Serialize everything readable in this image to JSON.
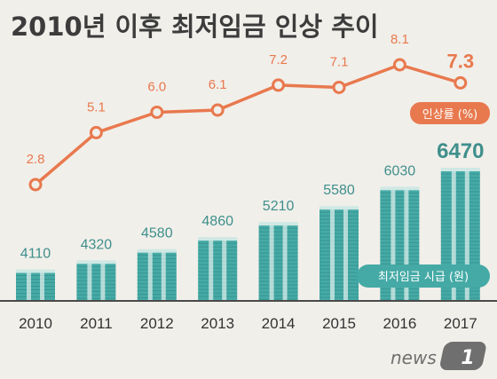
{
  "title": "2010년 이후 최저임금 인상 추이",
  "colors": {
    "background": "#f1efea",
    "line": "#e8794e",
    "bar": "#45aaa6",
    "bar_dark": "#2f8581",
    "bar_label": "#3f8f8c",
    "legend_rate_bg": "#e8794e",
    "legend_wage_bg": "#45aaa6"
  },
  "legend": {
    "rate": "인상률 (%)",
    "wage": "최저임금 시급 (원)"
  },
  "logo": {
    "text": "news",
    "badge": "1"
  },
  "chart_data": {
    "type": "bar+line",
    "categories": [
      "2010",
      "2011",
      "2012",
      "2013",
      "2014",
      "2015",
      "2016",
      "2017"
    ],
    "series": [
      {
        "name": "최저임금 시급 (원)",
        "type": "bar",
        "values": [
          4110,
          4320,
          4580,
          4860,
          5210,
          5580,
          6030,
          6470
        ]
      },
      {
        "name": "인상률 (%)",
        "type": "line",
        "values": [
          2.8,
          5.1,
          6.0,
          6.1,
          7.2,
          7.1,
          8.1,
          7.3
        ]
      }
    ],
    "display_labels": {
      "wage": [
        "4110",
        "4320",
        "4580",
        "4860",
        "5210",
        "5580",
        "6030",
        "6470"
      ],
      "rate": [
        "2.8",
        "5.1",
        "6.0",
        "6.1",
        "7.2",
        "7.1",
        "8.1",
        "7.3"
      ]
    },
    "highlight_last": true,
    "grid": false
  }
}
